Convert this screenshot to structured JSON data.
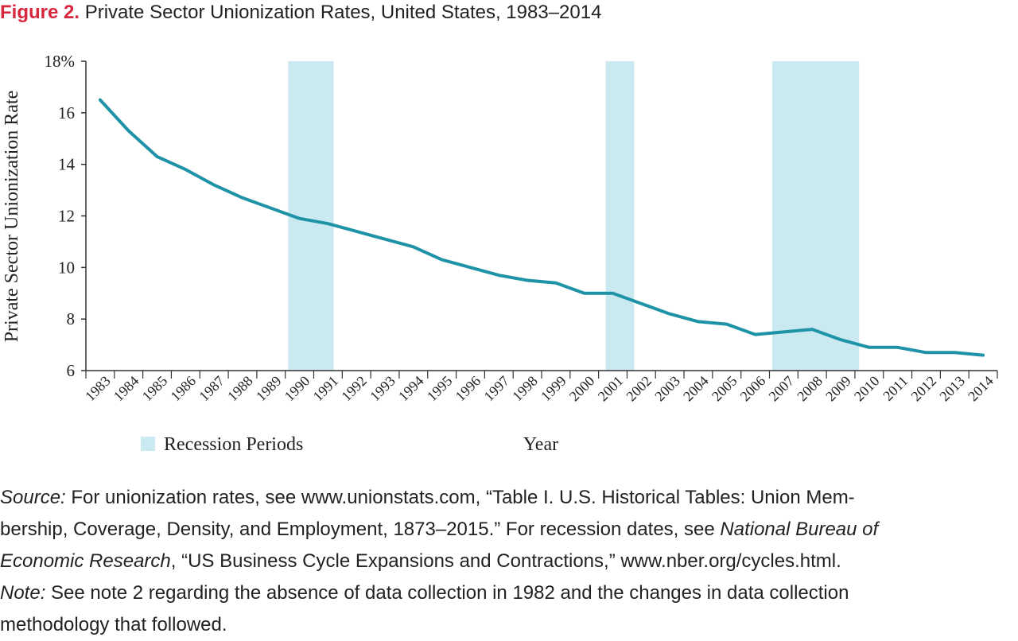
{
  "figure": {
    "number": "Figure 2.",
    "title": "Private Sector Unionization Rates, United States, 1983–2014"
  },
  "legend_label": "Recession Periods",
  "colors": {
    "line": "#1e93a7",
    "recession": "#cbe9f0",
    "figure_label": "#d7263d",
    "text": "#222222"
  },
  "chart_data": {
    "type": "line",
    "title": "Private Sector Unionization Rates, United States, 1983–2014",
    "xlabel": "Year",
    "ylabel": "Private Sector Unionization Rate",
    "ylim": [
      6,
      18
    ],
    "ytick_values": [
      6,
      8,
      10,
      12,
      14,
      16,
      18
    ],
    "ytick_labels": [
      "6",
      "8",
      "10",
      "12",
      "14",
      "16",
      "18%"
    ],
    "categories": [
      "1983",
      "1984",
      "1985",
      "1986",
      "1987",
      "1988",
      "1989",
      "1990",
      "1991",
      "1992",
      "1993",
      "1994",
      "1995",
      "1996",
      "1997",
      "1998",
      "1999",
      "2000",
      "2001",
      "2002",
      "2003",
      "2004",
      "2005",
      "2006",
      "2007",
      "2008",
      "2009",
      "2010",
      "2011",
      "2012",
      "2013",
      "2014"
    ],
    "series": [
      {
        "name": "Private Sector Unionization Rate",
        "values": [
          16.5,
          15.3,
          14.3,
          13.8,
          13.2,
          12.7,
          12.3,
          11.9,
          11.7,
          11.4,
          11.1,
          10.8,
          10.3,
          10.0,
          9.7,
          9.5,
          9.4,
          9.0,
          9.0,
          8.6,
          8.2,
          7.9,
          7.8,
          7.4,
          7.5,
          7.6,
          7.2,
          6.9,
          6.9,
          6.7,
          6.7,
          6.6
        ]
      }
    ],
    "recessions": [
      {
        "start": 1989.6,
        "end": 1991.2
      },
      {
        "start": 2000.75,
        "end": 2001.75
      },
      {
        "start": 2006.6,
        "end": 2009.65
      }
    ],
    "legend": "bottom-left",
    "grid": false
  },
  "notes": {
    "source_label": "Source:",
    "source_text_1": " For unionization rates, see www.unionstats.com, “Table I. U.S. Historical Tables: Union Mem-",
    "source_text_2": "bership, Coverage, Density, and Employment, 1873–2015.” For recession dates, see ",
    "nber_name_1": "National Bureau of",
    "nber_name_2": "Economic Research",
    "source_text_3": ", “US Business Cycle Expansions and Contractions,” www.nber.org/cycles.html.",
    "note_label": "Note:",
    "note_text_1": " See note 2 regarding the absence of data collection in 1982 and the changes in data collection",
    "note_text_2": "methodology that followed."
  }
}
